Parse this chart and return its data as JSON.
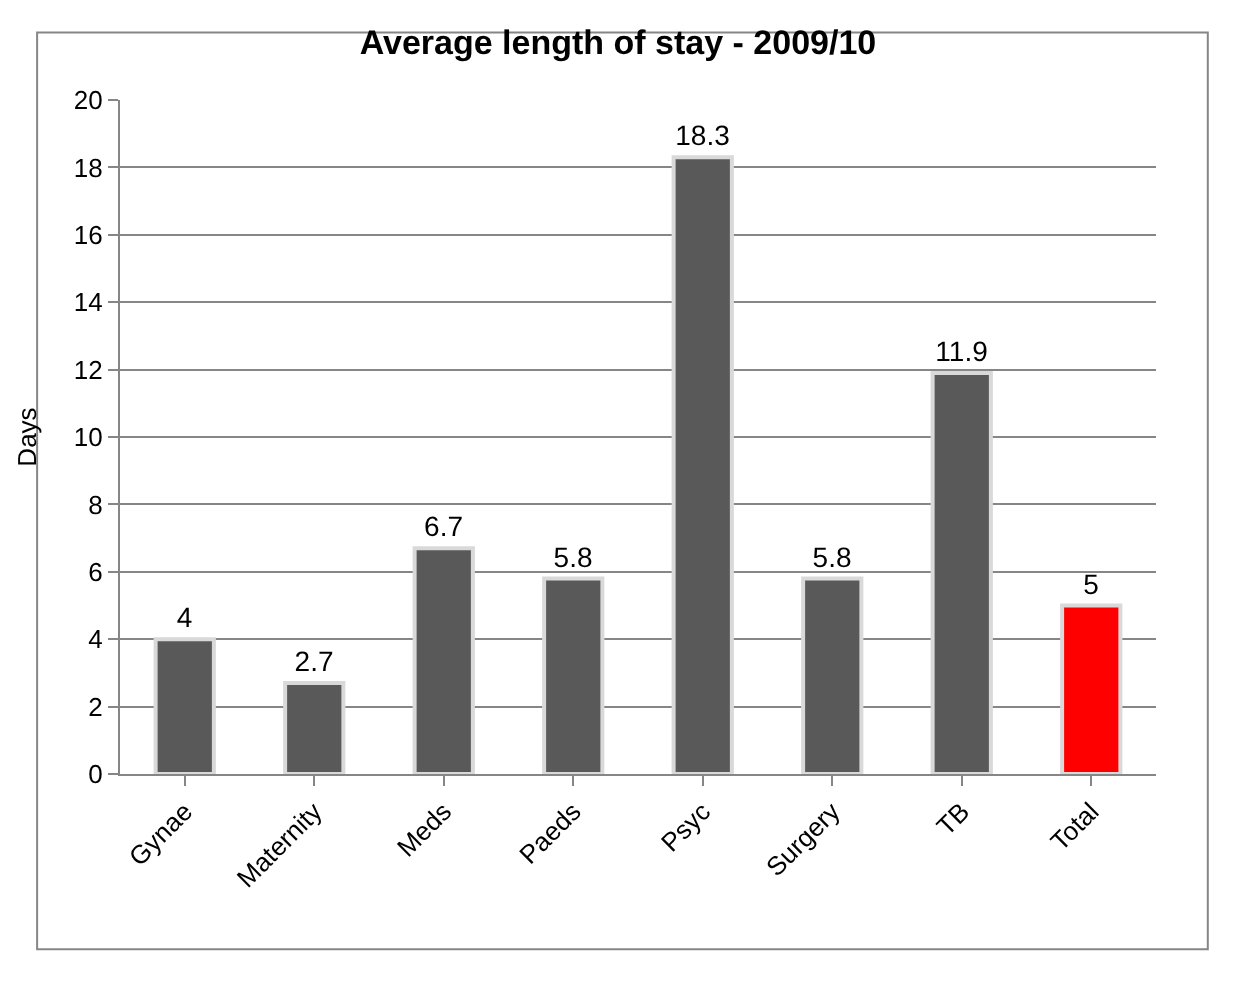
{
  "chart_data": {
    "type": "bar",
    "title": "Average length of stay - 2009/10",
    "ylabel": "Days",
    "categories": [
      "Gynae",
      "Maternity",
      "Meds",
      "Paeds",
      "Psyc",
      "Surgery",
      "TB",
      "Total"
    ],
    "values": [
      4,
      2.7,
      6.7,
      5.8,
      18.3,
      5.8,
      11.9,
      5
    ],
    "colors": [
      "#595959",
      "#595959",
      "#595959",
      "#595959",
      "#595959",
      "#595959",
      "#595959",
      "#ff0000"
    ],
    "ylim": [
      0,
      20
    ],
    "yticks": [
      0,
      2,
      4,
      6,
      8,
      10,
      12,
      14,
      16,
      18,
      20
    ],
    "grid": "y",
    "data_labels": true,
    "legend": false
  }
}
